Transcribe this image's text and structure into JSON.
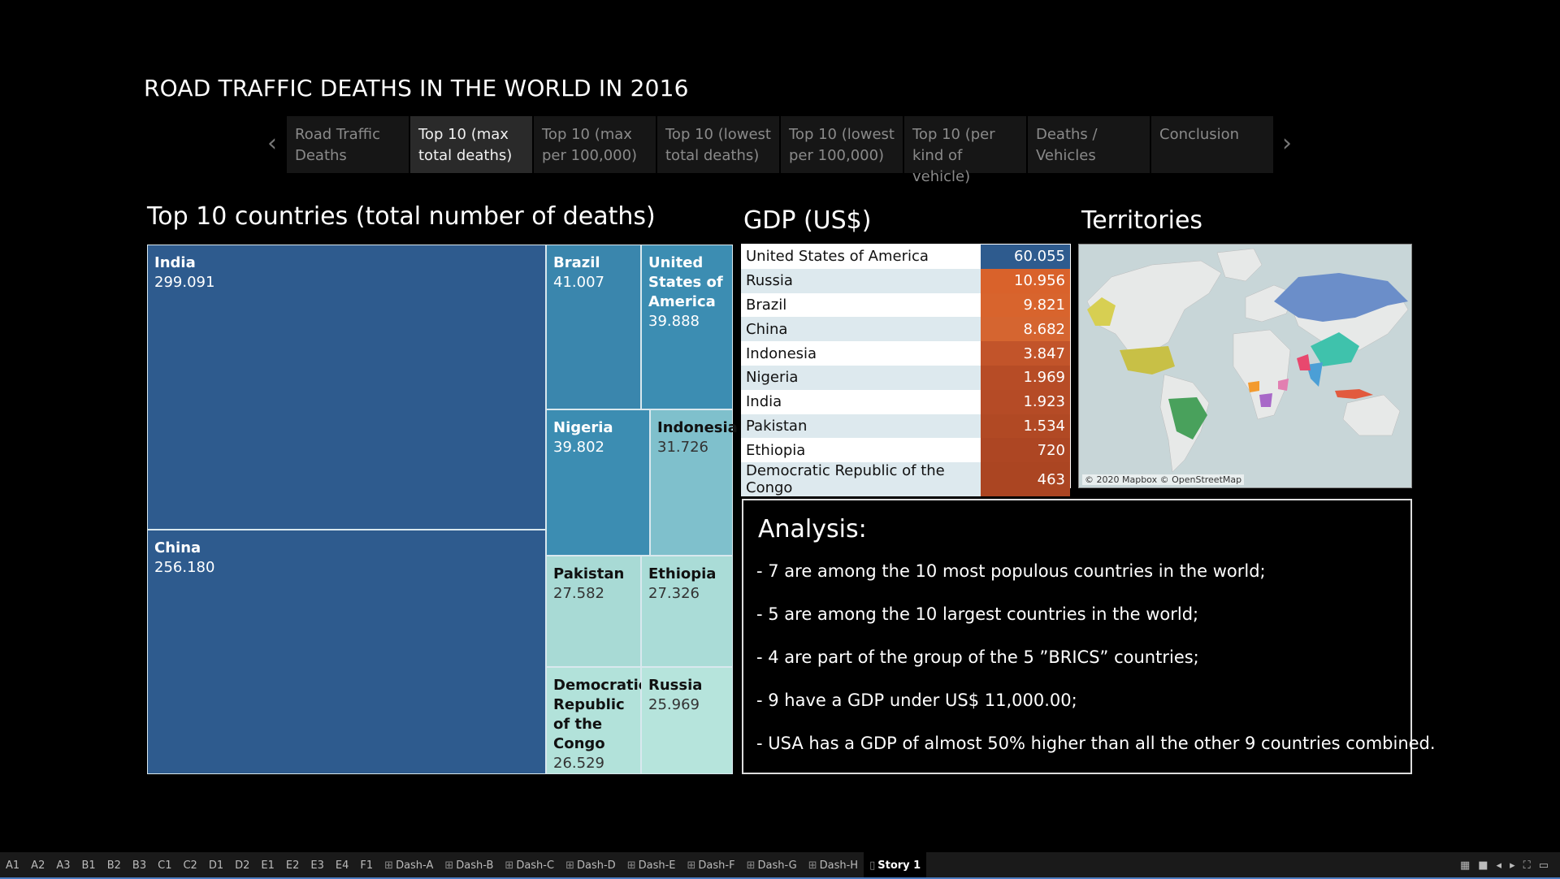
{
  "story": {
    "title": "ROAD TRAFFIC DEATHS IN THE WORLD IN 2016",
    "tabs": [
      {
        "label": "Road Traffic Deaths"
      },
      {
        "label": "Top 10 (max total deaths)"
      },
      {
        "label": "Top 10 (max per 100,000)"
      },
      {
        "label": "Top 10 (lowest total deaths)"
      },
      {
        "label": "Top 10 (lowest per 100,000)"
      },
      {
        "label": "Top 10 (per kind of vehicle)"
      },
      {
        "label": "Deaths / Vehicles"
      },
      {
        "label": "Conclusion"
      }
    ],
    "active_tab": 1,
    "prev_icon": "chevron-left-icon",
    "next_icon": "chevron-right-icon"
  },
  "treemap": {
    "title": "Top 10 countries (total number of deaths)",
    "cells": [
      {
        "name": "India",
        "value": "299.091",
        "color": "#2e5b8e"
      },
      {
        "name": "China",
        "value": "256.180",
        "color": "#2e5b8e"
      },
      {
        "name": "Brazil",
        "value": "41.007",
        "color": "#3a86ad"
      },
      {
        "name": "United States of America",
        "value": "39.888",
        "color": "#3c8db2"
      },
      {
        "name": "Nigeria",
        "value": "39.802",
        "color": "#3c8db2"
      },
      {
        "name": "Indonesia",
        "value": "31.726",
        "color": "#7fc0cc"
      },
      {
        "name": "Pakistan",
        "value": "27.582",
        "color": "#a8dad5"
      },
      {
        "name": "Ethiopia",
        "value": "27.326",
        "color": "#aadcd7"
      },
      {
        "name": "Democratic Republic of the Congo",
        "value": "26.529",
        "color": "#b2e2da"
      },
      {
        "name": "Russia",
        "value": "25.969",
        "color": "#b6e4dc"
      }
    ]
  },
  "gdp": {
    "title": "GDP (US$)",
    "rows": [
      {
        "country": "United States of America",
        "value": "60.055",
        "color": "#2e5b8e"
      },
      {
        "country": "Russia",
        "value": "10.956",
        "color": "#d9622b"
      },
      {
        "country": "Brazil",
        "value": "9.821",
        "color": "#d8642d"
      },
      {
        "country": "China",
        "value": "8.682",
        "color": "#d56530"
      },
      {
        "country": "Indonesia",
        "value": "3.847",
        "color": "#c2542a"
      },
      {
        "country": "Nigeria",
        "value": "1.969",
        "color": "#b74c26"
      },
      {
        "country": "India",
        "value": "1.923",
        "color": "#b54b26"
      },
      {
        "country": "Pakistan",
        "value": "1.534",
        "color": "#b14924"
      },
      {
        "country": "Ethiopia",
        "value": "720",
        "color": "#ad4623"
      },
      {
        "country": "Democratic Republic of the Congo",
        "value": "463",
        "color": "#ab4522"
      }
    ]
  },
  "territories": {
    "title": "Territories",
    "credit": "© 2020 Mapbox © OpenStreetMap"
  },
  "analysis": {
    "title": "Analysis:",
    "lines": [
      "- 7 are among the 10 most populous countries in the world;",
      "- 5 are among the 10 largest countries in the world;",
      "- 4 are part of the group of the 5 ”BRICS” countries;",
      "- 9 have a GDP under US$ 11,000.00;",
      "- USA has a GDP of almost 50% higher than all the other 9 countries combined."
    ]
  },
  "sheets": [
    "A1",
    "A2",
    "A3",
    "B1",
    "B2",
    "B3",
    "C1",
    "C2",
    "D1",
    "D2",
    "E1",
    "E2",
    "E3",
    "E4",
    "F1",
    "Dash-A",
    "Dash-B",
    "Dash-C",
    "Dash-D",
    "Dash-E",
    "Dash-F",
    "Dash-G",
    "Dash-H",
    "Story 1"
  ],
  "active_sheet": "Story 1"
}
